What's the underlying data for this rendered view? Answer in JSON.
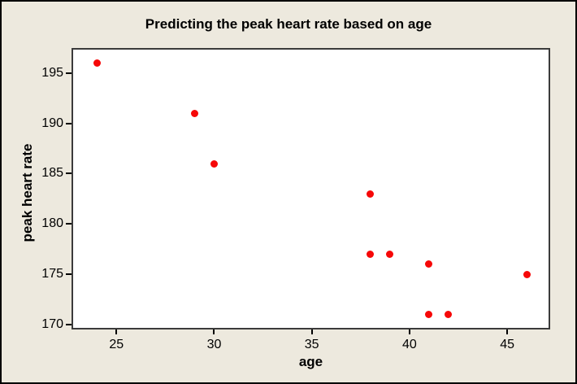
{
  "chart_data": {
    "type": "scatter",
    "title": "Predicting the peak heart rate based on age",
    "xlabel": "age",
    "ylabel": "peak heart rate",
    "x": [
      24,
      29,
      30,
      38,
      38,
      39,
      41,
      41,
      42,
      46
    ],
    "y": [
      196,
      191,
      186,
      183,
      177,
      177,
      176,
      171,
      171,
      175
    ],
    "xticks": [
      25,
      30,
      35,
      40,
      45
    ],
    "yticks": [
      170,
      175,
      180,
      185,
      190,
      195
    ],
    "xlim": [
      22.7,
      47.2
    ],
    "ylim": [
      169.5,
      197.5
    ],
    "grid": false,
    "legend": "none",
    "point_color": "#f60808",
    "canvas_background": "#ede9de",
    "plot_background": "#ffffff",
    "plot_border_color": "#3b3b3b",
    "frame_border_color": "#000000",
    "text_color": "#000000"
  }
}
